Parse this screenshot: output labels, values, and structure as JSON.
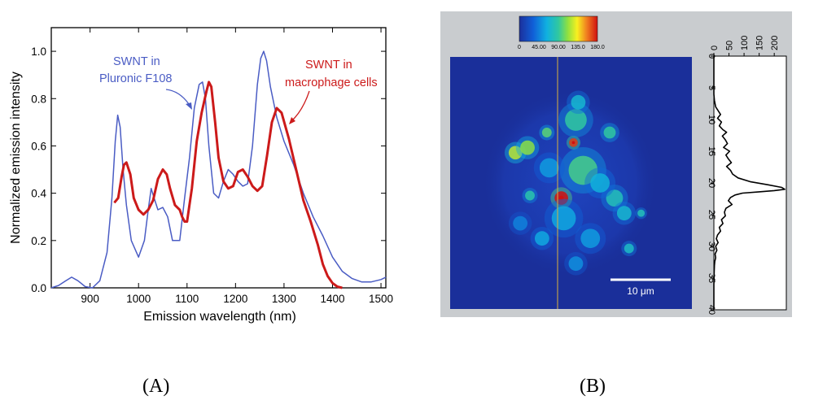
{
  "captions": {
    "a": "(A)",
    "b": "(B)"
  },
  "colors": {
    "pluronic": "#4a5cc4",
    "macrophage": "#cc1a1a",
    "panel_bg": "#c9cccf",
    "map_bg": "#1a2f9a",
    "scale_bar": "#ffffff",
    "line_cut": "#d8b040"
  },
  "chart_data": [
    {
      "type": "line",
      "panel": "A",
      "title": "",
      "xlabel": "Emission wavelength  (nm)",
      "ylabel": "Normalized emission intensity",
      "xlim": [
        820,
        1510
      ],
      "ylim": [
        0,
        1.1
      ],
      "xticks": [
        "900",
        "1000",
        "1100",
        "1200",
        "1300",
        "1400",
        "1500"
      ],
      "yticks": [
        "0.0",
        "0.2",
        "0.4",
        "0.6",
        "0.8",
        "1.0"
      ],
      "annotations": [
        {
          "lines": [
            "SWNT in",
            "Pluronic F108"
          ],
          "series": "Pluronic F108",
          "arrow_to": [
            1115,
            0.74
          ]
        },
        {
          "lines": [
            "SWNT in",
            "macrophage cells"
          ],
          "series": "macrophage cells",
          "arrow_to": [
            1300,
            0.68
          ]
        }
      ],
      "series": [
        {
          "name": "Pluronic F108",
          "x": [
            820,
            835,
            850,
            862,
            875,
            890,
            905,
            920,
            935,
            945,
            952,
            957,
            962,
            968,
            975,
            985,
            1000,
            1012,
            1020,
            1026,
            1032,
            1040,
            1050,
            1060,
            1070,
            1085,
            1095,
            1105,
            1115,
            1125,
            1132,
            1138,
            1145,
            1155,
            1165,
            1175,
            1185,
            1195,
            1205,
            1215,
            1225,
            1235,
            1245,
            1252,
            1258,
            1264,
            1272,
            1285,
            1300,
            1320,
            1340,
            1360,
            1380,
            1400,
            1420,
            1440,
            1460,
            1480,
            1500,
            1510
          ],
          "y": [
            0.0,
            0.01,
            0.03,
            0.045,
            0.03,
            0.005,
            0.0,
            0.03,
            0.15,
            0.38,
            0.62,
            0.73,
            0.68,
            0.5,
            0.35,
            0.2,
            0.13,
            0.2,
            0.33,
            0.42,
            0.38,
            0.33,
            0.34,
            0.3,
            0.2,
            0.2,
            0.38,
            0.55,
            0.76,
            0.86,
            0.87,
            0.8,
            0.6,
            0.4,
            0.38,
            0.45,
            0.5,
            0.48,
            0.45,
            0.43,
            0.44,
            0.6,
            0.86,
            0.97,
            1.0,
            0.96,
            0.85,
            0.72,
            0.62,
            0.52,
            0.4,
            0.3,
            0.22,
            0.13,
            0.07,
            0.04,
            0.025,
            0.025,
            0.035,
            0.045
          ]
        },
        {
          "name": "macrophage cells",
          "x": [
            950,
            958,
            965,
            970,
            975,
            983,
            990,
            1000,
            1010,
            1020,
            1030,
            1040,
            1050,
            1058,
            1065,
            1075,
            1085,
            1090,
            1095,
            1100,
            1110,
            1120,
            1130,
            1140,
            1145,
            1150,
            1158,
            1165,
            1175,
            1185,
            1195,
            1205,
            1215,
            1225,
            1235,
            1245,
            1255,
            1265,
            1275,
            1285,
            1295,
            1310,
            1325,
            1340,
            1355,
            1370,
            1380,
            1390,
            1400,
            1410,
            1420
          ],
          "y": [
            0.36,
            0.38,
            0.47,
            0.52,
            0.53,
            0.48,
            0.38,
            0.33,
            0.31,
            0.33,
            0.37,
            0.46,
            0.5,
            0.48,
            0.42,
            0.35,
            0.33,
            0.3,
            0.28,
            0.28,
            0.42,
            0.62,
            0.74,
            0.83,
            0.87,
            0.85,
            0.7,
            0.55,
            0.45,
            0.42,
            0.43,
            0.49,
            0.5,
            0.47,
            0.43,
            0.41,
            0.43,
            0.56,
            0.7,
            0.76,
            0.74,
            0.63,
            0.5,
            0.37,
            0.28,
            0.18,
            0.1,
            0.05,
            0.02,
            0.005,
            0.0
          ]
        }
      ]
    },
    {
      "type": "heatmap",
      "panel": "B",
      "title": "",
      "colorbar": {
        "ticks": [
          "0",
          "45.00",
          "90.00",
          "135.0",
          "180.0"
        ],
        "range": [
          0,
          180
        ]
      },
      "scale_bar_label": "10 μm",
      "blobs": [
        {
          "x": 0.46,
          "y": 0.56,
          "r": 0.028,
          "v": 180
        },
        {
          "x": 0.51,
          "y": 0.34,
          "r": 0.018,
          "v": 170
        },
        {
          "x": 0.52,
          "y": 0.25,
          "r": 0.045,
          "v": 90
        },
        {
          "x": 0.53,
          "y": 0.18,
          "r": 0.03,
          "v": 70
        },
        {
          "x": 0.55,
          "y": 0.45,
          "r": 0.06,
          "v": 95
        },
        {
          "x": 0.27,
          "y": 0.38,
          "r": 0.028,
          "v": 120
        },
        {
          "x": 0.32,
          "y": 0.36,
          "r": 0.03,
          "v": 110
        },
        {
          "x": 0.4,
          "y": 0.3,
          "r": 0.02,
          "v": 100
        },
        {
          "x": 0.66,
          "y": 0.3,
          "r": 0.025,
          "v": 90
        },
        {
          "x": 0.33,
          "y": 0.55,
          "r": 0.02,
          "v": 85
        },
        {
          "x": 0.68,
          "y": 0.56,
          "r": 0.035,
          "v": 80
        },
        {
          "x": 0.72,
          "y": 0.62,
          "r": 0.03,
          "v": 70
        },
        {
          "x": 0.47,
          "y": 0.64,
          "r": 0.05,
          "v": 60
        },
        {
          "x": 0.62,
          "y": 0.5,
          "r": 0.04,
          "v": 65
        },
        {
          "x": 0.58,
          "y": 0.72,
          "r": 0.04,
          "v": 55
        },
        {
          "x": 0.38,
          "y": 0.72,
          "r": 0.03,
          "v": 60
        },
        {
          "x": 0.74,
          "y": 0.76,
          "r": 0.02,
          "v": 75
        },
        {
          "x": 0.41,
          "y": 0.44,
          "r": 0.04,
          "v": 55
        },
        {
          "x": 0.52,
          "y": 0.82,
          "r": 0.03,
          "v": 50
        },
        {
          "x": 0.79,
          "y": 0.62,
          "r": 0.015,
          "v": 80
        },
        {
          "x": 0.29,
          "y": 0.66,
          "r": 0.03,
          "v": 45
        }
      ],
      "line_profile": {
        "xticks": [
          "0",
          "50",
          "100",
          "150",
          "200"
        ],
        "yticks": [
          "0",
          "5",
          "10",
          "15",
          "20",
          "25",
          "30",
          "35",
          "40"
        ],
        "xlim": [
          0,
          240
        ],
        "ylim": [
          0,
          40
        ],
        "depth": [
          0,
          2,
          4,
          6,
          7,
          8,
          8.6,
          9.2,
          9.8,
          10.4,
          11,
          11.6,
          12,
          12.6,
          13.2,
          13.8,
          14.4,
          15,
          15.6,
          16.2,
          16.8,
          17.4,
          18,
          18.6,
          19.2,
          19.8,
          20.3,
          20.7,
          21,
          21.2,
          21.4,
          21.6,
          21.9,
          22.3,
          22.8,
          23.4,
          24,
          24.6,
          25.2,
          25.8,
          26.4,
          27,
          27.6,
          28.2,
          28.8,
          29.4,
          30,
          30.6,
          31.2,
          31.8,
          32.4,
          33,
          34,
          36,
          38,
          40
        ],
        "intensity": [
          0,
          0,
          0,
          0,
          2,
          6,
          14,
          22,
          12,
          25,
          18,
          30,
          42,
          28,
          38,
          45,
          32,
          52,
          40,
          48,
          58,
          42,
          55,
          62,
          80,
          120,
          180,
          225,
          235,
          200,
          150,
          95,
          70,
          55,
          48,
          60,
          40,
          35,
          38,
          25,
          30,
          18,
          22,
          12,
          8,
          14,
          6,
          10,
          4,
          6,
          3,
          2,
          1,
          0,
          0,
          0
        ]
      }
    }
  ]
}
